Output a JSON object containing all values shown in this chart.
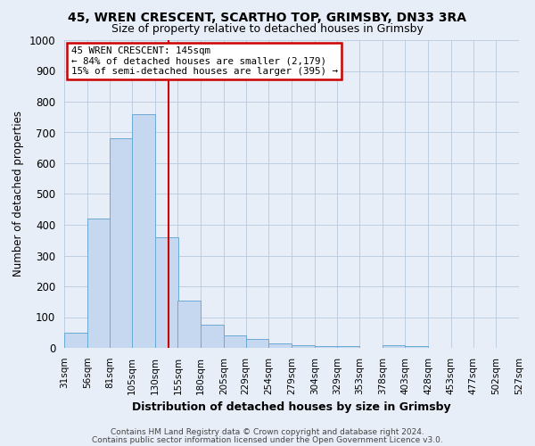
{
  "title_line1": "45, WREN CRESCENT, SCARTHO TOP, GRIMSBY, DN33 3RA",
  "title_line2": "Size of property relative to detached houses in Grimsby",
  "xlabel": "Distribution of detached houses by size in Grimsby",
  "ylabel": "Number of detached properties",
  "footnote1": "Contains HM Land Registry data © Crown copyright and database right 2024.",
  "footnote2": "Contains public sector information licensed under the Open Government Licence v3.0.",
  "annotation_line1": "45 WREN CRESCENT: 145sqm",
  "annotation_line2": "← 84% of detached houses are smaller (2,179)",
  "annotation_line3": "15% of semi-detached houses are larger (395) →",
  "bin_edges": [
    31,
    56,
    81,
    105,
    130,
    155,
    180,
    205,
    229,
    254,
    279,
    304,
    329,
    353,
    378,
    403,
    428,
    453,
    477,
    502,
    527
  ],
  "bar_heights": [
    50,
    420,
    680,
    760,
    360,
    155,
    75,
    40,
    28,
    15,
    10,
    7,
    5,
    0,
    8,
    5,
    0,
    0,
    0,
    0
  ],
  "bar_color": "#c5d8f0",
  "bar_edge_color": "#6aaad4",
  "red_line_x": 145,
  "ylim": [
    0,
    1000
  ],
  "yticks": [
    0,
    100,
    200,
    300,
    400,
    500,
    600,
    700,
    800,
    900,
    1000
  ],
  "background_color": "#e8eef8",
  "annotation_box_color": "#ffffff",
  "annotation_box_edge": "#cc0000",
  "red_line_color": "#cc0000",
  "grid_color": "#b8c8dc"
}
